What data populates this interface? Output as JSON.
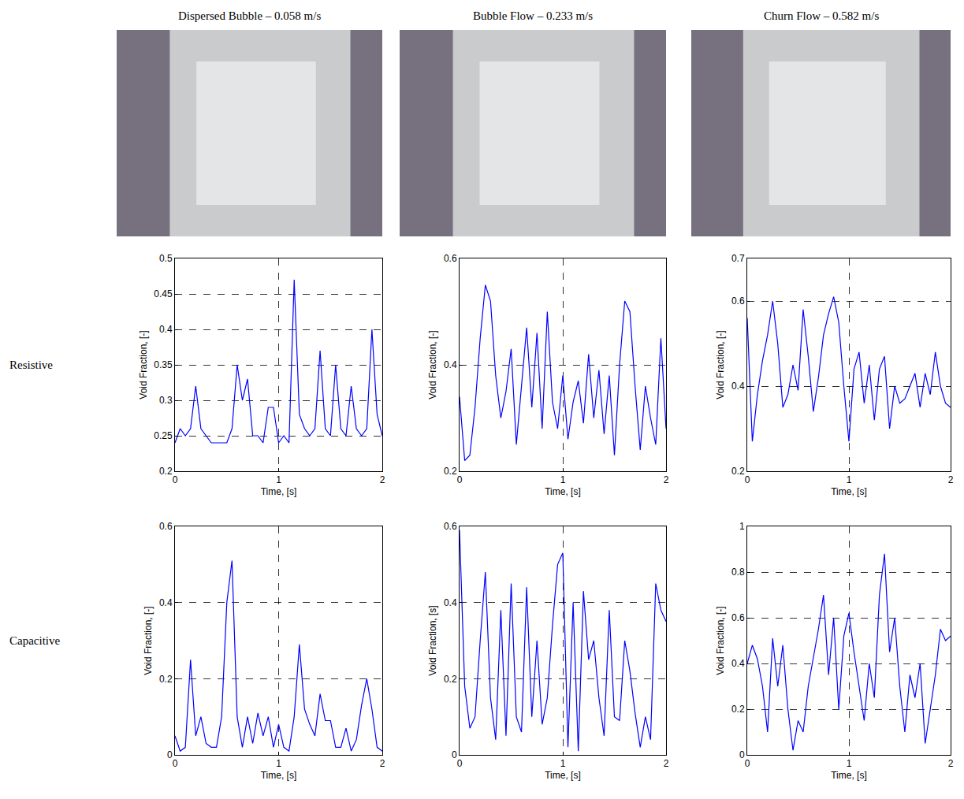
{
  "column_titles": [
    "Dispersed Bubble – 0.058 m/s",
    "Bubble Flow – 0.233 m/s",
    "Churn Flow – 0.582 m/s"
  ],
  "row_labels": [
    "Resistive",
    "Capacitive"
  ],
  "chart_data": [
    {
      "type": "line",
      "color": "#0000ff",
      "grid": true,
      "x_label": "Time, [s]",
      "y_label": "Void Fraction, [-]",
      "xlim": [
        0,
        2
      ],
      "xticks": [
        0,
        1,
        2
      ],
      "ylim": [
        0.2,
        0.5
      ],
      "yticks": [
        0.2,
        0.25,
        0.3,
        0.35,
        0.4,
        0.45,
        0.5
      ],
      "x": [
        0,
        0.05,
        0.1,
        0.15,
        0.2,
        0.25,
        0.3,
        0.35,
        0.4,
        0.45,
        0.5,
        0.55,
        0.6,
        0.65,
        0.7,
        0.75,
        0.8,
        0.85,
        0.9,
        0.95,
        1,
        1.05,
        1.1,
        1.15,
        1.2,
        1.25,
        1.3,
        1.35,
        1.4,
        1.45,
        1.5,
        1.55,
        1.6,
        1.65,
        1.7,
        1.75,
        1.8,
        1.85,
        1.9,
        1.95,
        2
      ],
      "values": [
        0.24,
        0.26,
        0.25,
        0.26,
        0.32,
        0.26,
        0.25,
        0.24,
        0.24,
        0.24,
        0.24,
        0.26,
        0.35,
        0.3,
        0.33,
        0.25,
        0.25,
        0.24,
        0.29,
        0.29,
        0.24,
        0.25,
        0.24,
        0.47,
        0.28,
        0.26,
        0.25,
        0.26,
        0.37,
        0.26,
        0.25,
        0.35,
        0.26,
        0.25,
        0.32,
        0.26,
        0.25,
        0.26,
        0.4,
        0.28,
        0.25
      ]
    },
    {
      "type": "line",
      "color": "#0000ff",
      "grid": true,
      "x_label": "Time, [s]",
      "y_label": "Void Fraction, [-]",
      "xlim": [
        0,
        2
      ],
      "xticks": [
        0,
        1,
        2
      ],
      "ylim": [
        0.2,
        0.6
      ],
      "yticks": [
        0.2,
        0.4,
        0.6
      ],
      "x": [
        0,
        0.05,
        0.1,
        0.15,
        0.2,
        0.25,
        0.3,
        0.35,
        0.4,
        0.45,
        0.5,
        0.55,
        0.6,
        0.65,
        0.7,
        0.75,
        0.8,
        0.85,
        0.9,
        0.95,
        1,
        1.05,
        1.1,
        1.15,
        1.2,
        1.25,
        1.3,
        1.35,
        1.4,
        1.45,
        1.5,
        1.55,
        1.6,
        1.65,
        1.7,
        1.75,
        1.8,
        1.85,
        1.9,
        1.95,
        2
      ],
      "values": [
        0.34,
        0.22,
        0.23,
        0.32,
        0.45,
        0.55,
        0.52,
        0.38,
        0.3,
        0.35,
        0.43,
        0.25,
        0.36,
        0.47,
        0.32,
        0.46,
        0.28,
        0.5,
        0.33,
        0.28,
        0.38,
        0.26,
        0.33,
        0.37,
        0.29,
        0.42,
        0.3,
        0.39,
        0.27,
        0.38,
        0.23,
        0.4,
        0.52,
        0.5,
        0.36,
        0.24,
        0.36,
        0.3,
        0.25,
        0.45,
        0.28
      ]
    },
    {
      "type": "line",
      "color": "#0000ff",
      "grid": true,
      "x_label": "Time, [s]",
      "y_label": "Void Fraction, [-]",
      "xlim": [
        0,
        2
      ],
      "xticks": [
        0,
        1,
        2
      ],
      "ylim": [
        0.2,
        0.7
      ],
      "yticks": [
        0.2,
        0.4,
        0.6,
        0.7
      ],
      "x": [
        0,
        0.05,
        0.1,
        0.15,
        0.2,
        0.25,
        0.3,
        0.35,
        0.4,
        0.45,
        0.5,
        0.55,
        0.6,
        0.65,
        0.7,
        0.75,
        0.8,
        0.85,
        0.9,
        0.95,
        1,
        1.05,
        1.1,
        1.15,
        1.2,
        1.25,
        1.3,
        1.35,
        1.4,
        1.45,
        1.5,
        1.55,
        1.6,
        1.65,
        1.7,
        1.75,
        1.8,
        1.85,
        1.9,
        1.95,
        2
      ],
      "values": [
        0.56,
        0.27,
        0.38,
        0.46,
        0.52,
        0.6,
        0.5,
        0.35,
        0.38,
        0.45,
        0.39,
        0.58,
        0.47,
        0.34,
        0.42,
        0.52,
        0.57,
        0.61,
        0.55,
        0.4,
        0.27,
        0.44,
        0.48,
        0.36,
        0.45,
        0.32,
        0.44,
        0.47,
        0.3,
        0.4,
        0.36,
        0.37,
        0.4,
        0.43,
        0.35,
        0.43,
        0.38,
        0.48,
        0.4,
        0.36,
        0.35
      ]
    },
    {
      "type": "line",
      "color": "#0000ff",
      "grid": true,
      "x_label": "Time, [s]",
      "y_label": "Void Fraction, [-]",
      "xlim": [
        0,
        2
      ],
      "xticks": [
        0,
        1,
        2
      ],
      "ylim": [
        0,
        0.6
      ],
      "yticks": [
        0,
        0.2,
        0.4,
        0.6
      ],
      "x": [
        0,
        0.05,
        0.1,
        0.15,
        0.2,
        0.25,
        0.3,
        0.35,
        0.4,
        0.45,
        0.5,
        0.55,
        0.6,
        0.65,
        0.7,
        0.75,
        0.8,
        0.85,
        0.9,
        0.95,
        1,
        1.05,
        1.1,
        1.15,
        1.2,
        1.25,
        1.3,
        1.35,
        1.4,
        1.45,
        1.5,
        1.55,
        1.6,
        1.65,
        1.7,
        1.75,
        1.8,
        1.85,
        1.9,
        1.95,
        2
      ],
      "values": [
        0.05,
        0.01,
        0.02,
        0.25,
        0.05,
        0.1,
        0.03,
        0.02,
        0.02,
        0.1,
        0.4,
        0.51,
        0.1,
        0.02,
        0.1,
        0.03,
        0.11,
        0.05,
        0.1,
        0.02,
        0.08,
        0.02,
        0.01,
        0.1,
        0.29,
        0.12,
        0.08,
        0.05,
        0.16,
        0.09,
        0.09,
        0.02,
        0.02,
        0.07,
        0.01,
        0.04,
        0.13,
        0.2,
        0.12,
        0.02,
        0.01
      ]
    },
    {
      "type": "line",
      "color": "#0000ff",
      "grid": true,
      "x_label": "Time, [s]",
      "y_label": "Void Fraction, [s]",
      "xlim": [
        0,
        2
      ],
      "xticks": [
        0,
        1,
        2
      ],
      "ylim": [
        0,
        0.6
      ],
      "yticks": [
        0,
        0.2,
        0.4,
        0.6
      ],
      "x": [
        0,
        0.05,
        0.1,
        0.15,
        0.2,
        0.25,
        0.3,
        0.35,
        0.4,
        0.45,
        0.5,
        0.55,
        0.6,
        0.65,
        0.7,
        0.75,
        0.8,
        0.85,
        0.9,
        0.95,
        1,
        1.05,
        1.1,
        1.15,
        1.2,
        1.25,
        1.3,
        1.35,
        1.4,
        1.45,
        1.5,
        1.55,
        1.6,
        1.65,
        1.7,
        1.75,
        1.8,
        1.85,
        1.9,
        1.95,
        2
      ],
      "values": [
        0.59,
        0.18,
        0.07,
        0.1,
        0.3,
        0.48,
        0.15,
        0.04,
        0.38,
        0.05,
        0.45,
        0.1,
        0.06,
        0.44,
        0.1,
        0.3,
        0.08,
        0.15,
        0.34,
        0.5,
        0.53,
        0.02,
        0.4,
        0.01,
        0.43,
        0.25,
        0.3,
        0.15,
        0.05,
        0.38,
        0.1,
        0.09,
        0.3,
        0.22,
        0.11,
        0.02,
        0.1,
        0.04,
        0.45,
        0.38,
        0.35
      ]
    },
    {
      "type": "line",
      "color": "#0000ff",
      "grid": true,
      "x_label": "Time, [s]",
      "y_label": "Void Fraction, [-]",
      "xlim": [
        0,
        2
      ],
      "xticks": [
        0,
        1,
        2
      ],
      "ylim": [
        0,
        1
      ],
      "yticks": [
        0,
        0.2,
        0.4,
        0.6,
        0.8,
        1
      ],
      "x": [
        0,
        0.05,
        0.1,
        0.15,
        0.2,
        0.25,
        0.3,
        0.35,
        0.4,
        0.45,
        0.5,
        0.55,
        0.6,
        0.65,
        0.7,
        0.75,
        0.8,
        0.85,
        0.9,
        0.95,
        1,
        1.05,
        1.1,
        1.15,
        1.2,
        1.25,
        1.3,
        1.35,
        1.4,
        1.45,
        1.5,
        1.55,
        1.6,
        1.65,
        1.7,
        1.75,
        1.8,
        1.85,
        1.9,
        1.95,
        2
      ],
      "values": [
        0.4,
        0.48,
        0.42,
        0.3,
        0.1,
        0.51,
        0.3,
        0.48,
        0.2,
        0.02,
        0.15,
        0.1,
        0.3,
        0.42,
        0.55,
        0.7,
        0.35,
        0.6,
        0.2,
        0.52,
        0.62,
        0.45,
        0.3,
        0.15,
        0.4,
        0.25,
        0.7,
        0.88,
        0.45,
        0.6,
        0.3,
        0.1,
        0.35,
        0.25,
        0.4,
        0.05,
        0.2,
        0.35,
        0.55,
        0.5,
        0.52
      ]
    }
  ]
}
